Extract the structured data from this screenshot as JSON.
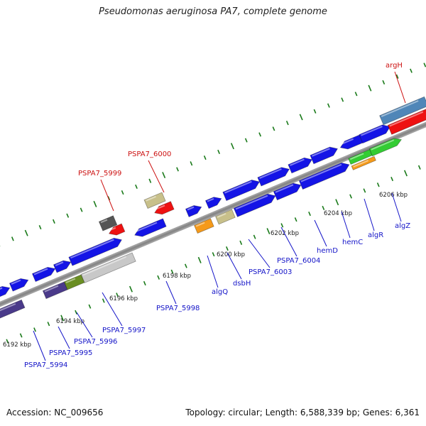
{
  "title": "Pseudomonas aeruginosa PA7, complete genome",
  "accession_text": "Accession: NC_009656",
  "summary_text": "Topology: circular; Length: 6,588,339 bp; Genes: 6,361",
  "colors": {
    "backbone": "#888888",
    "tick": "#1a7a1a",
    "gene_default": "#1414e6",
    "label_blue": "#1414c8",
    "label_red": "#cc1111",
    "red": "#ee1111",
    "olive": "#6a8e23",
    "tan": "#c8c08a",
    "purple": "#4a3a8a",
    "gray_dark": "#555555",
    "gray_light": "#c8c8c8",
    "orange": "#f59a1a",
    "green": "#33cc33",
    "steel": "#4f86b8"
  },
  "scale_labels": [
    "6192 kbp",
    "6194 kbp",
    "6196 kbp",
    "6198 kbp",
    "6200 kbp",
    "6202 kbp",
    "6204 kbp",
    "6206 kbp"
  ],
  "gene_labels": [
    {
      "name": "PSPA7_5994",
      "color": "label_blue"
    },
    {
      "name": "PSPA7_5995",
      "color": "label_blue"
    },
    {
      "name": "PSPA7_5996",
      "color": "label_blue"
    },
    {
      "name": "PSPA7_5997",
      "color": "label_blue"
    },
    {
      "name": "PSPA7_5998",
      "color": "label_blue"
    },
    {
      "name": "algQ",
      "color": "label_blue"
    },
    {
      "name": "dsbH",
      "color": "label_blue"
    },
    {
      "name": "PSPA7_6003",
      "color": "label_blue"
    },
    {
      "name": "PSPA7_6004",
      "color": "label_blue"
    },
    {
      "name": "hemD",
      "color": "label_blue"
    },
    {
      "name": "hemC",
      "color": "label_blue"
    },
    {
      "name": "algR",
      "color": "label_blue"
    },
    {
      "name": "algZ",
      "color": "label_blue"
    },
    {
      "name": "PSPA7_5999",
      "color": "label_red"
    },
    {
      "name": "PSPA7_6000",
      "color": "label_red"
    },
    {
      "name": "argH",
      "color": "label_red"
    }
  ]
}
